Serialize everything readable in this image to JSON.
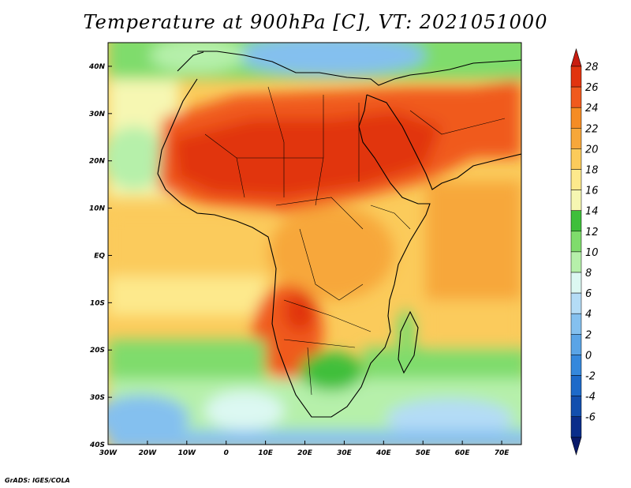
{
  "title": "Temperature at 900hPa [C], VT: 2021051000",
  "credit": "GrADS: IGES/COLA",
  "map": {
    "lon_range": [
      -30,
      75
    ],
    "lat_range": [
      -40,
      45
    ],
    "lon_ticks": [
      {
        "value": -30,
        "label": "30W"
      },
      {
        "value": -20,
        "label": "20W"
      },
      {
        "value": -10,
        "label": "10W"
      },
      {
        "value": 0,
        "label": "0"
      },
      {
        "value": 10,
        "label": "10E"
      },
      {
        "value": 20,
        "label": "20E"
      },
      {
        "value": 30,
        "label": "30E"
      },
      {
        "value": 40,
        "label": "40E"
      },
      {
        "value": 50,
        "label": "50E"
      },
      {
        "value": 60,
        "label": "60E"
      },
      {
        "value": 70,
        "label": "70E"
      }
    ],
    "lat_ticks": [
      {
        "value": 40,
        "label": "40N"
      },
      {
        "value": 30,
        "label": "30N"
      },
      {
        "value": 20,
        "label": "20N"
      },
      {
        "value": 10,
        "label": "10N"
      },
      {
        "value": 0,
        "label": "EQ"
      },
      {
        "value": -10,
        "label": "10S"
      },
      {
        "value": -20,
        "label": "20S"
      },
      {
        "value": -30,
        "label": "30S"
      },
      {
        "value": -40,
        "label": "40S"
      }
    ]
  },
  "colorbar": {
    "levels": [
      {
        "label": "28",
        "color": "#e1340f"
      },
      {
        "label": "26",
        "color": "#f05a1e"
      },
      {
        "label": "24",
        "color": "#f58c24"
      },
      {
        "label": "22",
        "color": "#f7a73a"
      },
      {
        "label": "20",
        "color": "#fbcb5b"
      },
      {
        "label": "18",
        "color": "#fde98c"
      },
      {
        "label": "16",
        "color": "#f6f7b2"
      },
      {
        "label": "14",
        "color": "#3fbf3b"
      },
      {
        "label": "12",
        "color": "#7fdc6c"
      },
      {
        "label": "10",
        "color": "#b6f0aa"
      },
      {
        "label": "8",
        "color": "#dcf8f2"
      },
      {
        "label": "6",
        "color": "#b4dcf6"
      },
      {
        "label": "4",
        "color": "#84c0ef"
      },
      {
        "label": "2",
        "color": "#5aa4e6"
      },
      {
        "label": "0",
        "color": "#3588dc"
      },
      {
        "label": "-2",
        "color": "#1d6ac9"
      },
      {
        "label": "-4",
        "color": "#124fae"
      },
      {
        "label": "-6",
        "color": "#0a2d8a"
      }
    ],
    "top_color": "#c81d10",
    "bottom_color": "#0a1a6a"
  }
}
